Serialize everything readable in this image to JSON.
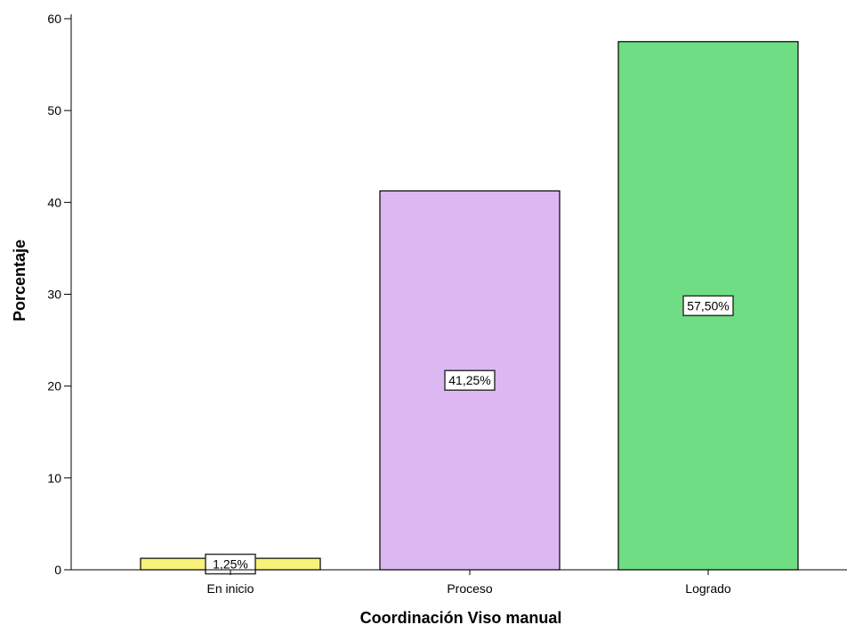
{
  "chart_data": {
    "type": "bar",
    "categories": [
      "En inicio",
      "Proceso",
      "Logrado"
    ],
    "values": [
      1.25,
      41.25,
      57.5
    ],
    "data_labels": [
      "1,25%",
      "41,25%",
      "57,50%"
    ],
    "colors": [
      "#f9f27a",
      "#dcb8f2",
      "#6edd83"
    ],
    "title": "",
    "xlabel": "Coordinación Viso manual",
    "ylabel": "Porcentaje",
    "ylim": [
      0,
      60
    ],
    "yticks": [
      0,
      10,
      20,
      30,
      40,
      50,
      60
    ],
    "ytick_labels": [
      "0",
      "10",
      "20",
      "30",
      "40",
      "50",
      "60"
    ],
    "grid": false,
    "legend": "none"
  }
}
